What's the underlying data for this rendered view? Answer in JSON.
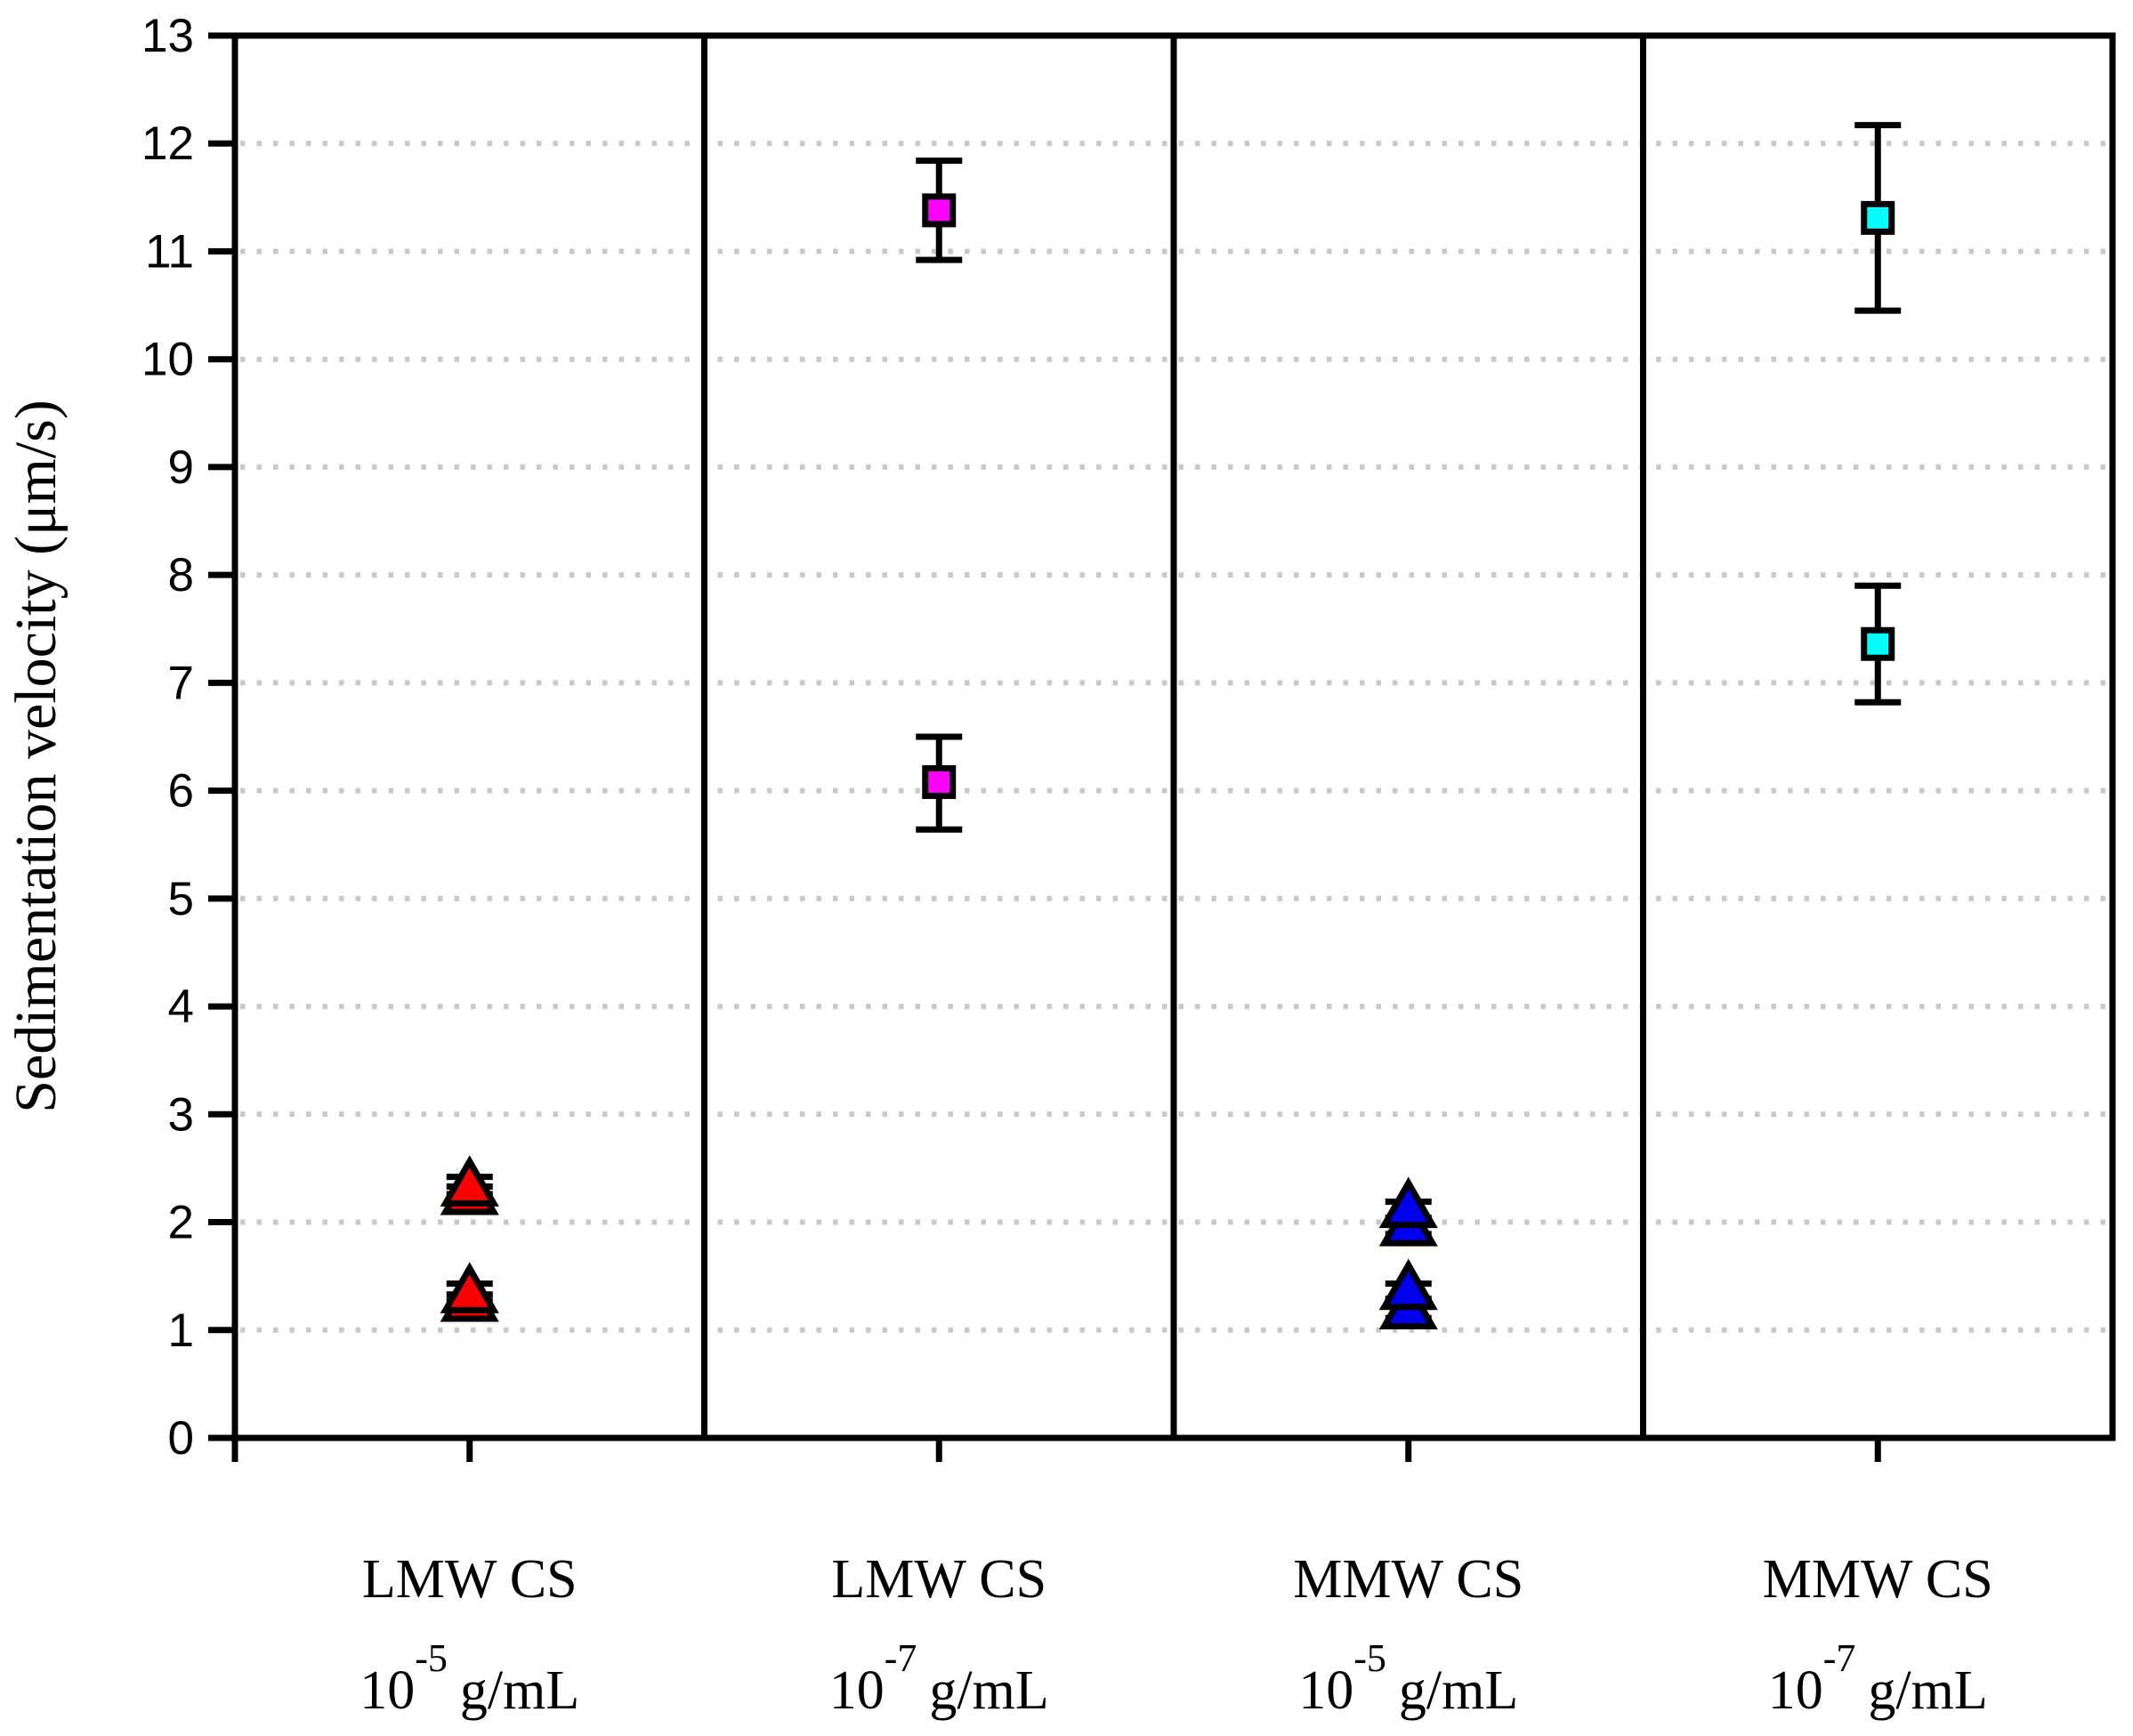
{
  "figure": {
    "background": "#ffffff",
    "axis_color": "#000000",
    "grid_color": "#c9c9c9"
  },
  "chart_data": {
    "type": "scatter",
    "title": "",
    "xlabel": "",
    "ylabel": "Sedimentation velocity (μm/s)",
    "ylim": [
      0,
      13
    ],
    "grid": "horizontal dotted gridlines at each integer 1-12",
    "legend_position": "none",
    "yticks": [
      "0",
      "1",
      "2",
      "3",
      "4",
      "5",
      "6",
      "7",
      "8",
      "9",
      "10",
      "11",
      "12",
      "13"
    ],
    "categories": [
      {
        "line1": "LMW CS",
        "conc_base": "10",
        "conc_exp": "-5",
        "conc_unit": "g/mL"
      },
      {
        "line1": "LMW CS",
        "conc_base": "10",
        "conc_exp": "-7",
        "conc_unit": "g/mL"
      },
      {
        "line1": "MMW CS",
        "conc_base": "10",
        "conc_exp": "-5",
        "conc_unit": "g/mL"
      },
      {
        "line1": "MMW CS",
        "conc_base": "10",
        "conc_exp": "-7",
        "conc_unit": "g/mL"
      }
    ],
    "series": [
      {
        "name": "LMW CS 10^-5 g/mL",
        "marker": "triangle",
        "color": "#ff0000",
        "points": [
          {
            "category": 0,
            "y": 2.34,
            "err_up": 0.08,
            "err_down": 0.08
          },
          {
            "category": 0,
            "y": 2.26,
            "err_up": 0.07,
            "err_down": 0.07
          },
          {
            "category": 0,
            "y": 1.35,
            "err_up": 0.08,
            "err_down": 0.08
          },
          {
            "category": 0,
            "y": 1.27,
            "err_up": 0.06,
            "err_down": 0.07
          }
        ]
      },
      {
        "name": "LMW CS 10^-7 g/mL",
        "marker": "square",
        "color": "#ff00ff",
        "points": [
          {
            "category": 1,
            "y": 11.38,
            "err_up": 0.46,
            "err_down": 0.46
          },
          {
            "category": 1,
            "y": 6.08,
            "err_up": 0.42,
            "err_down": 0.44
          }
        ]
      },
      {
        "name": "MMW CS 10^-5 g/mL",
        "marker": "triangle",
        "color": "#0000ee",
        "points": [
          {
            "category": 2,
            "y": 2.14,
            "err_up": 0.05,
            "err_down": 0.1
          },
          {
            "category": 2,
            "y": 1.97,
            "err_up": 0.07,
            "err_down": 0.08
          },
          {
            "category": 2,
            "y": 1.38,
            "err_up": 0.05,
            "err_down": 0.09
          },
          {
            "category": 2,
            "y": 1.2,
            "err_up": 0.07,
            "err_down": 0.09
          }
        ]
      },
      {
        "name": "MMW CS 10^-7 g/mL",
        "marker": "square",
        "color": "#00ffff",
        "points": [
          {
            "category": 3,
            "y": 11.31,
            "err_up": 0.86,
            "err_down": 0.86
          },
          {
            "category": 3,
            "y": 7.36,
            "err_up": 0.54,
            "err_down": 0.54
          }
        ]
      }
    ]
  }
}
